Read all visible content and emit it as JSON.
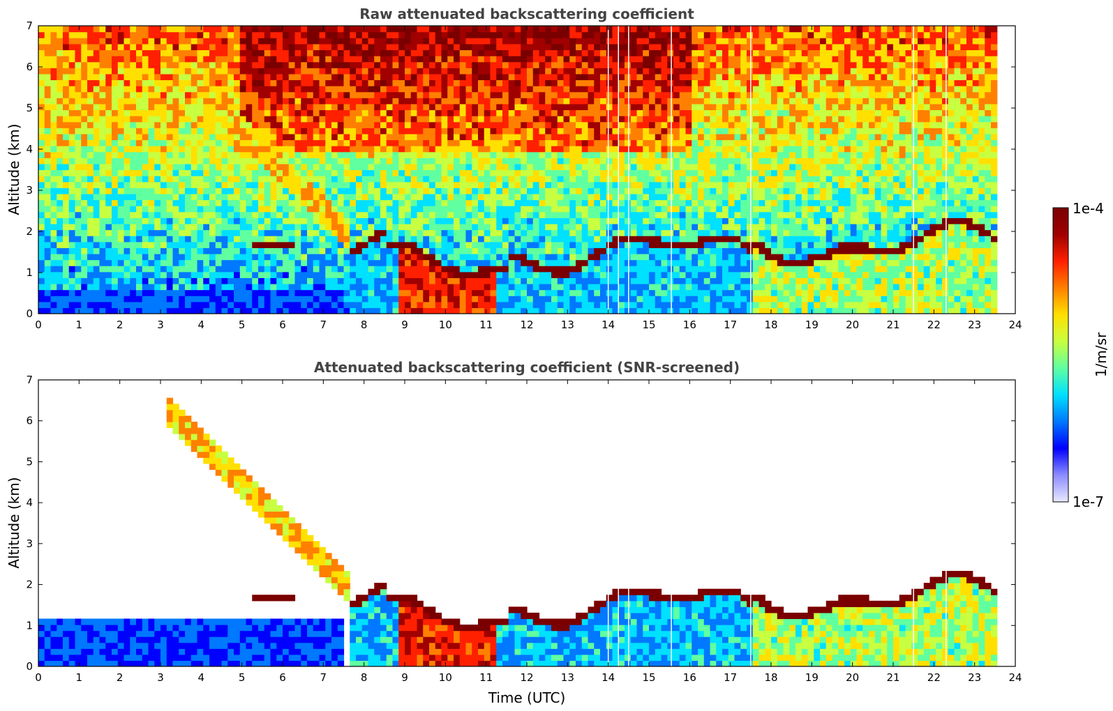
{
  "chart_data": [
    {
      "type": "heatmap",
      "title": "Raw attenuated backscattering coefficient",
      "xlabel": "",
      "ylabel": "Altitude (km)",
      "xlim": [
        0,
        24
      ],
      "ylim": [
        0,
        7
      ],
      "xticks": [
        "0",
        "1",
        "2",
        "3",
        "4",
        "5",
        "6",
        "7",
        "8",
        "9",
        "10",
        "11",
        "12",
        "13",
        "14",
        "15",
        "16",
        "17",
        "18",
        "19",
        "20",
        "21",
        "22",
        "23",
        "24"
      ],
      "yticks": [
        "0",
        "1",
        "2",
        "3",
        "4",
        "5",
        "6",
        "7"
      ],
      "data_end_hour": 23.6,
      "screened": false,
      "layers": [
        {
          "name": "surface aerosol",
          "t_start": 0,
          "t_end": 7.5,
          "alt_top": 0.6
        },
        {
          "name": "elevated layer",
          "t_start": 5.3,
          "t_end": 6.3,
          "alt": 1.65
        },
        {
          "name": "virga streaks",
          "t_start": 3.1,
          "t_end": 7.6,
          "alt_from": 6.3,
          "alt_to": 2.0
        },
        {
          "name": "boundary layer top",
          "t_start": 7.6,
          "t_end": 23.6,
          "alt_min": 1.1,
          "alt_max": 2.1
        }
      ],
      "gaps_hours": [
        14.0,
        14.25,
        14.5,
        15.55,
        17.5,
        21.5,
        22.3
      ]
    },
    {
      "type": "heatmap",
      "title": "Attenuated backscattering coefficient (SNR-screened)",
      "xlabel": "Time (UTC)",
      "ylabel": "Altitude (km)",
      "xlim": [
        0,
        24
      ],
      "ylim": [
        0,
        7
      ],
      "xticks": [
        "0",
        "1",
        "2",
        "3",
        "4",
        "5",
        "6",
        "7",
        "8",
        "9",
        "10",
        "11",
        "12",
        "13",
        "14",
        "15",
        "16",
        "17",
        "18",
        "19",
        "20",
        "21",
        "22",
        "23",
        "24"
      ],
      "yticks": [
        "0",
        "1",
        "2",
        "3",
        "4",
        "5",
        "6",
        "7"
      ],
      "data_end_hour": 23.6,
      "screened": true,
      "layers": [
        {
          "name": "surface aerosol",
          "t_start": 0,
          "t_end": 7.5,
          "alt_top": 1.1
        },
        {
          "name": "elevated layer",
          "t_start": 5.3,
          "t_end": 6.3,
          "alt": 1.65
        },
        {
          "name": "virga streaks",
          "t_start": 3.1,
          "t_end": 7.6,
          "alt_from": 6.3,
          "alt_to": 2.0
        },
        {
          "name": "boundary layer top",
          "t_start": 7.6,
          "t_end": 23.6,
          "alt_min": 1.1,
          "alt_max": 2.1
        }
      ],
      "gaps_hours": [
        14.0,
        14.25,
        14.5,
        15.55,
        17.5,
        21.5,
        22.3
      ]
    }
  ],
  "colorbar": {
    "label": "1/m/sr",
    "max_label": "1e-4",
    "min_label": "1e-7",
    "scale": "log",
    "colors": [
      "#e8e8ff",
      "#8c8cff",
      "#0000ff",
      "#0078ff",
      "#00e0ff",
      "#60ffa0",
      "#c8ff40",
      "#ffe000",
      "#ff8000",
      "#ff2000",
      "#a00000",
      "#7a0000"
    ]
  }
}
